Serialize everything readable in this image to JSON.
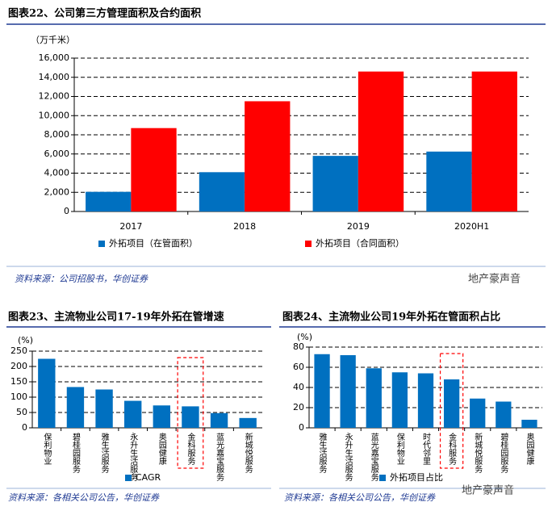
{
  "chart_data": [
    {
      "type": "bar",
      "title": "图表22、公司第三方管理面积及合约面积",
      "unit": "（万千米）",
      "categories": [
        "2017",
        "2018",
        "2019",
        "2020H1"
      ],
      "series": [
        {
          "name": "外拓项目（在管面积）",
          "color": "#0070c0",
          "values": [
            2050,
            4100,
            5800,
            6250
          ]
        },
        {
          "name": "外拓项目（合同面积）",
          "color": "#ff0000",
          "values": [
            8700,
            11500,
            14600,
            14600
          ]
        }
      ],
      "ylim": [
        0,
        16000
      ],
      "yticks": [
        0,
        {
          "value": 2000,
          "label": "2,000"
        },
        {
          "value": 4000,
          "label": "4,000"
        },
        {
          "value": 6000,
          "label": "6,000"
        },
        {
          "value": 8000,
          "label": "8,000"
        },
        {
          "value": 10000,
          "label": "10,000"
        },
        {
          "value": 12000,
          "label": "12,000"
        },
        {
          "value": 14000,
          "label": "14,000"
        },
        {
          "value": 16000,
          "label": "16,000"
        }
      ],
      "grid": true,
      "source": "资料来源：公司招股书，华创证券",
      "watermark": "地产豪声音"
    },
    {
      "type": "bar",
      "title": "图表23、主流物业公司17-19年外拓在管增速",
      "unit": "(%)",
      "categories": [
        "保利物业",
        "碧桂园服务",
        "雅生活服务",
        "永升生活服务",
        "奥园健康",
        "金科服务",
        "蓝光嘉宝服务",
        "新城悦服务"
      ],
      "series": [
        {
          "name": "CAGR",
          "color": "#0070c0",
          "values": [
            225,
            133,
            125,
            88,
            73,
            70,
            48,
            32
          ]
        }
      ],
      "ylim": [
        0,
        250
      ],
      "yticks": [
        0,
        50,
        100,
        150,
        200,
        250
      ],
      "grid": true,
      "highlight": 5,
      "source": "资料来源：各相关公司公告，华创证券"
    },
    {
      "type": "bar",
      "title": "图表24、主流物业公司19年外拓在管面积占比",
      "unit": "(%)",
      "categories": [
        "雅生活服务",
        "永升生活服务",
        "蓝光嘉宝服务",
        "保利物业",
        "时代邻里",
        "金科服务",
        "新城悦服务",
        "碧桂园服务",
        "奥园健康"
      ],
      "series": [
        {
          "name": "外拓项目占比",
          "color": "#0070c0",
          "values": [
            73,
            72,
            59,
            55,
            54,
            48,
            29,
            26,
            8
          ]
        }
      ],
      "ylim": [
        0,
        80
      ],
      "yticks": [
        0,
        20,
        40,
        60,
        80
      ],
      "grid": true,
      "highlight": 5,
      "source": "资料来源：各相关公司公告，华创证券",
      "watermark": "地产豪声音"
    }
  ]
}
